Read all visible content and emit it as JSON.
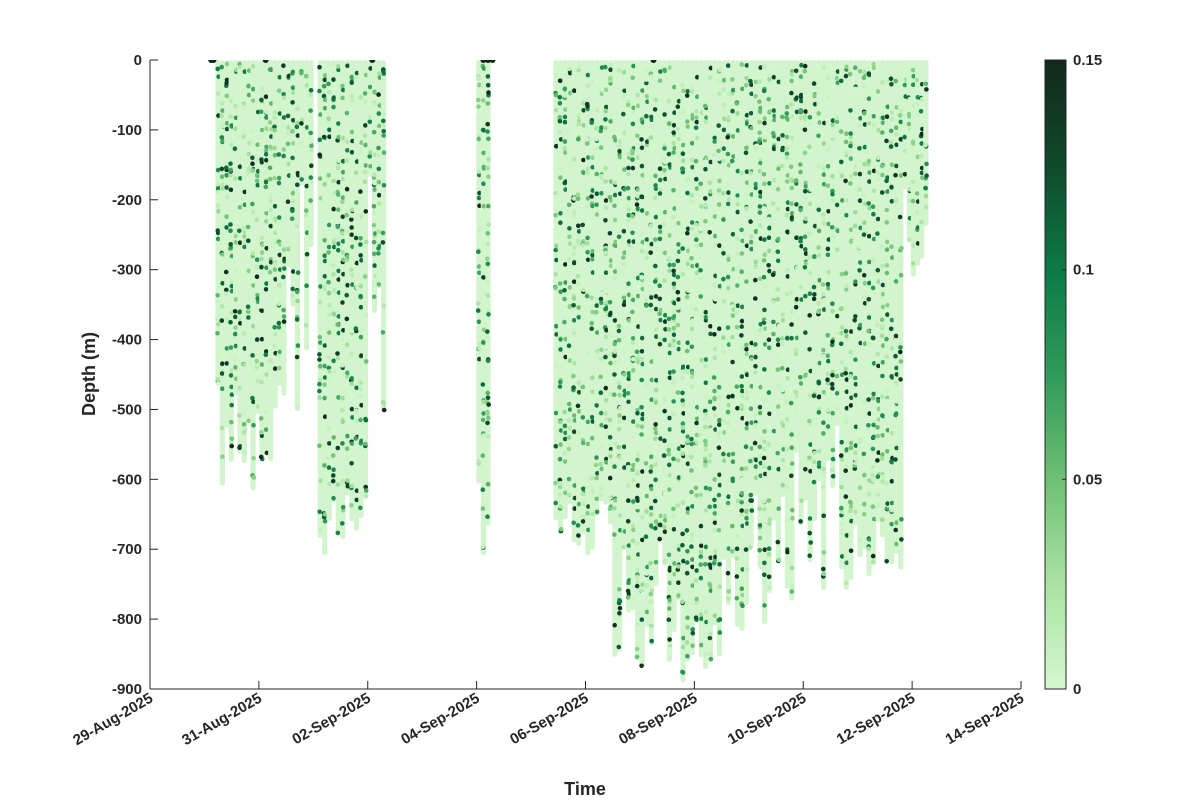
{
  "chart_data": {
    "type": "scatter",
    "xlabel": "Time",
    "ylabel": "Depth (m)",
    "xlim": [
      "2025-08-29",
      "2025-09-14"
    ],
    "ylim": [
      -900,
      0
    ],
    "x_ticks": [
      "29-Aug-2025",
      "31-Aug-2025",
      "02-Sep-2025",
      "04-Sep-2025",
      "06-Sep-2025",
      "08-Sep-2025",
      "10-Sep-2025",
      "12-Sep-2025",
      "14-Sep-2025"
    ],
    "y_ticks": [
      "0",
      "-100",
      "-200",
      "-300",
      "-400",
      "-500",
      "-600",
      "-700",
      "-800",
      "-900"
    ],
    "colorbar": {
      "ticks": [
        "0",
        "0.05",
        "0.1",
        "0.15"
      ],
      "range": [
        0,
        0.15
      ],
      "colormap": [
        "#d5f7d0",
        "#a9e3a2",
        "#6fbf74",
        "#2f9a5a",
        "#0c7a45",
        "#0e4a2c",
        "#13281c"
      ]
    },
    "point_color_low": "#d2f5cd",
    "point_color_high": "#13281c",
    "profiles": [
      {
        "start": "2025-08-30T05:00",
        "end": "2025-08-31T12:00",
        "max_depth_range": [
          -460,
          -620
        ]
      },
      {
        "start": "2025-08-31T12:00",
        "end": "2025-09-01T00:00",
        "max_depth_range": [
          -100,
          -580
        ]
      },
      {
        "start": "2025-09-01T02:00",
        "end": "2025-09-02T00:00",
        "max_depth_range": [
          -600,
          -715
        ]
      },
      {
        "start": "2025-09-02T00:00",
        "end": "2025-09-02T08:00",
        "max_depth_range": [
          -100,
          -540
        ]
      },
      {
        "start": "2025-09-04T00:00",
        "end": "2025-09-04T06:00",
        "max_depth_range": [
          -600,
          -715
        ]
      },
      {
        "start": "2025-09-05T10:00",
        "end": "2025-09-06T12:00",
        "max_depth_range": [
          -620,
          -715
        ]
      },
      {
        "start": "2025-09-06T12:00",
        "end": "2025-09-07T18:00",
        "max_depth_range": [
          -680,
          -900
        ]
      },
      {
        "start": "2025-09-07T18:00",
        "end": "2025-09-08T12:00",
        "max_depth_range": [
          -800,
          -900
        ]
      },
      {
        "start": "2025-09-08T12:00",
        "end": "2025-09-09T12:00",
        "max_depth_range": [
          -600,
          -840
        ]
      },
      {
        "start": "2025-09-09T12:00",
        "end": "2025-09-10T12:00",
        "max_depth_range": [
          -560,
          -790
        ]
      },
      {
        "start": "2025-09-10T12:00",
        "end": "2025-09-11T12:00",
        "max_depth_range": [
          -500,
          -790
        ]
      },
      {
        "start": "2025-09-11T12:00",
        "end": "2025-09-11T20:00",
        "max_depth_range": [
          -700,
          -740
        ]
      },
      {
        "start": "2025-09-11T20:00",
        "end": "2025-09-12T07:00",
        "max_depth_range": [
          -150,
          -310
        ]
      }
    ]
  }
}
